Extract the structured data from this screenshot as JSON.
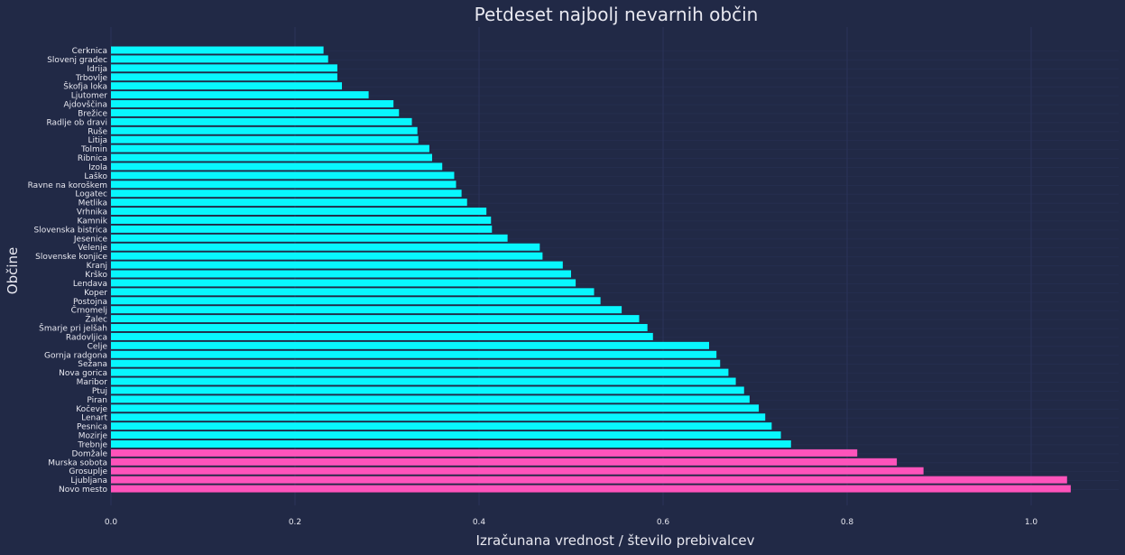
{
  "chart_data": {
    "type": "bar",
    "orientation": "horizontal",
    "title": "Petdeset najbolj nevarnih občin",
    "xlabel": "Izračunana vrednost / število prebivalcev",
    "ylabel": "Občine",
    "xlim": [
      0,
      1.09
    ],
    "xticks": [
      "0.0",
      "0.2",
      "0.4",
      "0.6",
      "0.8",
      "1.0"
    ],
    "grid": true,
    "categories": [
      "Cerknica",
      "Slovenj gradec",
      "Idrija",
      "Trbovlje",
      "Škofja loka",
      "Ljutomer",
      "Ajdovščina",
      "Brežice",
      "Radlje ob dravi",
      "Ruše",
      "Litija",
      "Tolmin",
      "Ribnica",
      "Izola",
      "Laško",
      "Ravne na koroškem",
      "Logatec",
      "Metlika",
      "Vrhnika",
      "Kamnik",
      "Slovenska bistrica",
      "Jesenice",
      "Velenje",
      "Slovenske konjice",
      "Kranj",
      "Krško",
      "Lendava",
      "Koper",
      "Postojna",
      "Črnomelj",
      "Žalec",
      "Šmarje pri jelšah",
      "Radovljica",
      "Celje",
      "Gornja radgona",
      "Sežana",
      "Nova gorica",
      "Maribor",
      "Ptuj",
      "Piran",
      "Kočevje",
      "Lenart",
      "Pesnica",
      "Mozirje",
      "Trebnje",
      "Domžale",
      "Murska sobota",
      "Grosuplje",
      "Ljubljana",
      "Novo mesto"
    ],
    "values": [
      0.231,
      0.236,
      0.246,
      0.246,
      0.251,
      0.28,
      0.307,
      0.313,
      0.327,
      0.333,
      0.334,
      0.346,
      0.349,
      0.36,
      0.373,
      0.375,
      0.381,
      0.387,
      0.408,
      0.413,
      0.414,
      0.431,
      0.466,
      0.469,
      0.491,
      0.5,
      0.505,
      0.525,
      0.532,
      0.555,
      0.574,
      0.583,
      0.589,
      0.65,
      0.658,
      0.662,
      0.671,
      0.679,
      0.688,
      0.694,
      0.704,
      0.711,
      0.718,
      0.728,
      0.739,
      0.811,
      0.854,
      0.883,
      1.039,
      1.043
    ],
    "highlight_count": 5,
    "colors": {
      "bar": "#08F7FE",
      "highlight": "#FE53BB",
      "background": "#212946",
      "grid": "#2A3459",
      "text": "#e8e8f0"
    }
  }
}
